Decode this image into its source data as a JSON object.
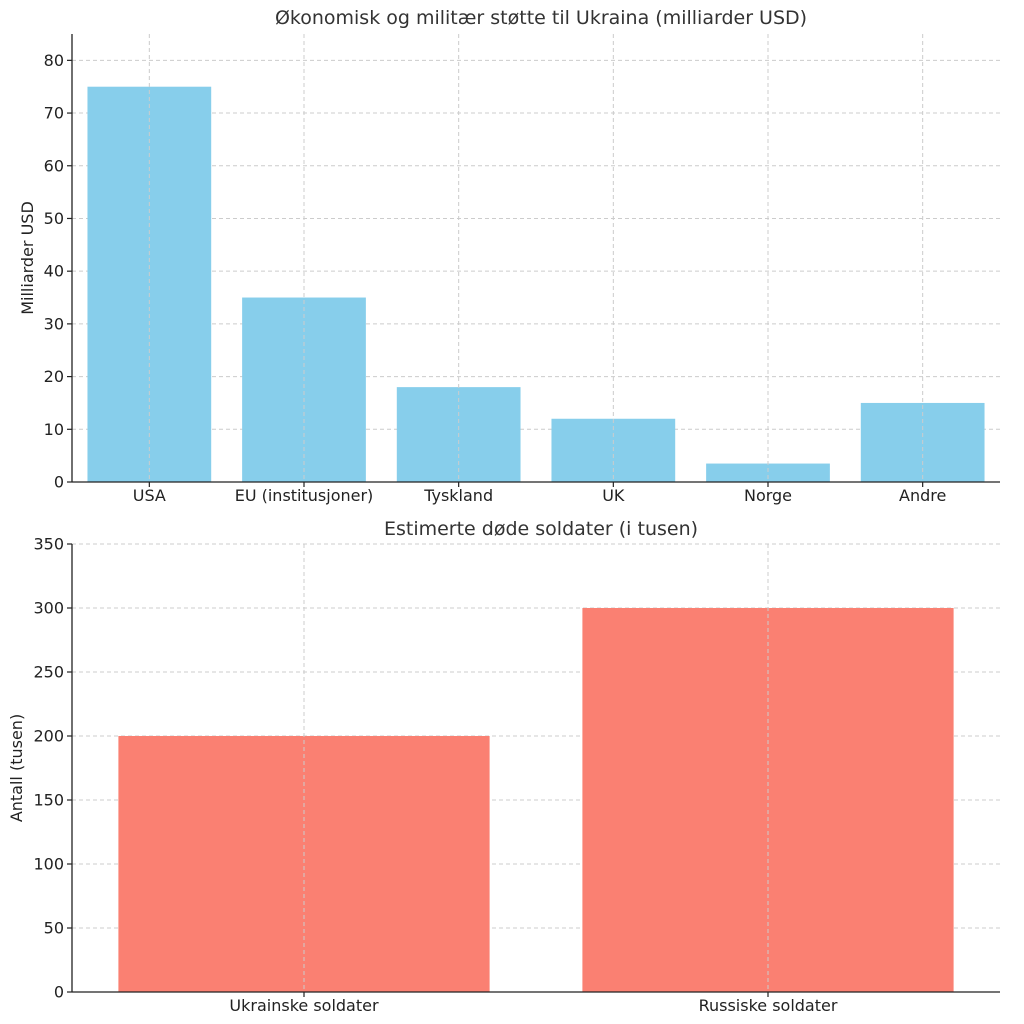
{
  "chart_data": [
    {
      "type": "bar",
      "title": "Økonomisk og militær støtte til Ukraina (milliarder USD)",
      "xlabel": "",
      "ylabel": "Milliarder USD",
      "categories": [
        "USA",
        "EU (institusjoner)",
        "Tyskland",
        "UK",
        "Norge",
        "Andre"
      ],
      "values": [
        75,
        35,
        18,
        12,
        3.5,
        15
      ],
      "ylim": [
        0,
        85
      ],
      "yticks": [
        0,
        10,
        20,
        30,
        40,
        50,
        60,
        70,
        80
      ],
      "grid": true,
      "color": "#87ceeb"
    },
    {
      "type": "bar",
      "title": "Estimerte døde soldater (i tusen)",
      "xlabel": "",
      "ylabel": "Antall (tusen)",
      "categories": [
        "Ukrainske soldater",
        "Russiske soldater"
      ],
      "values": [
        200,
        300
      ],
      "ylim": [
        0,
        350
      ],
      "yticks": [
        0,
        50,
        100,
        150,
        200,
        250,
        300,
        350
      ],
      "grid": true,
      "color": "#fa8072"
    }
  ]
}
